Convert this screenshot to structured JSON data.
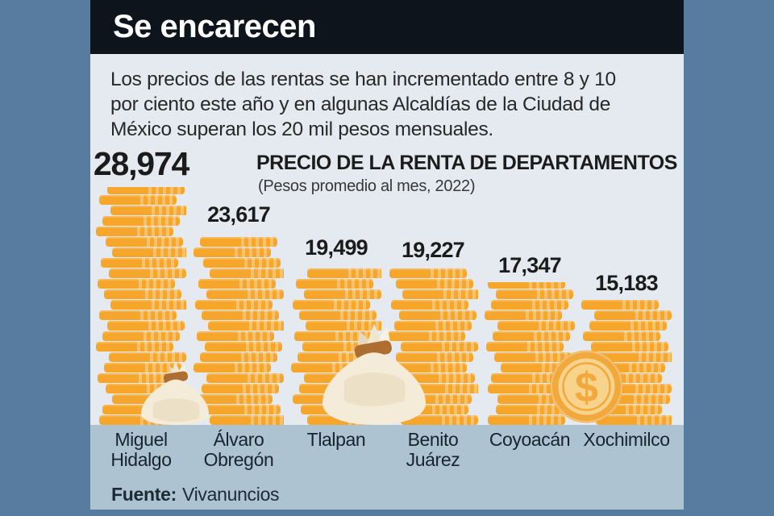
{
  "header": {
    "title": "Se encarecen"
  },
  "intro": {
    "lines": [
      "Los precios de las rentas se han incrementado entre 8 y 10",
      "por ciento este año y en algunas Alcaldías de la Ciudad de",
      "México superan los 20 mil pesos mensuales."
    ]
  },
  "chart_data": {
    "type": "bar",
    "title": "PRECIO DE LA RENTA DE DEPARTAMENTOS",
    "subtitle": "(Pesos promedio al mes, 2022)",
    "categories": [
      "Miguel Hidalgo",
      "Álvaro Obregón",
      "Tlalpan",
      "Benito Juárez",
      "Coyoacán",
      "Xochimilco"
    ],
    "values": [
      28974,
      23617,
      19499,
      19227,
      17347,
      15183
    ],
    "value_labels": [
      "28,974",
      "23,617",
      "19,499",
      "19,227",
      "17,347",
      "15,183"
    ],
    "ylim": [
      0,
      29000
    ],
    "unit": "pesos promedio al mes",
    "legend": "none",
    "bar_style": "coin-stack",
    "grid": false
  },
  "decorations": {
    "dollar_symbol": "$",
    "icons": [
      "money-bag-small-icon",
      "money-bag-large-icon",
      "dollar-coin-icon"
    ]
  },
  "footer": {
    "source_label": "Fuente:",
    "source_value": "Vivanuncios"
  },
  "colors": {
    "frame_blue": "#587C9F",
    "header_black": "#0D141B",
    "panel_light": "#E5EAF0",
    "strip_blue": "#AEC3D2",
    "coin_orange": "#F6A62B",
    "bag_cream": "#F4EBD8",
    "bag_band_brown": "#AE6D31",
    "text_dark": "#1B1B1B",
    "title_white": "#FFFFFF"
  }
}
